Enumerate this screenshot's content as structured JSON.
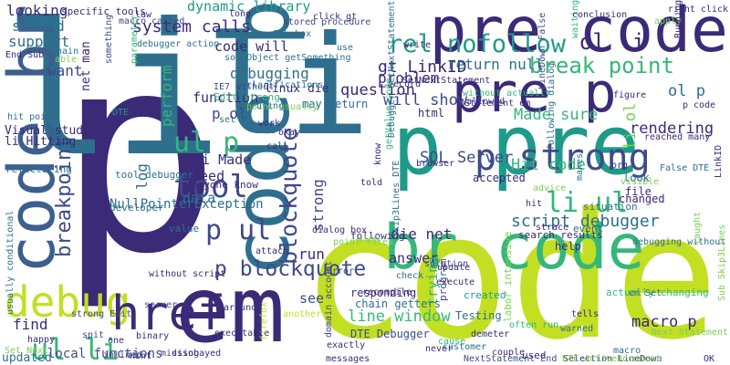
{
  "palette": {
    "navy": "#3b2a78",
    "indigo": "#3e4a8a",
    "blue": "#3b5f8f",
    "steel": "#2e6f8e",
    "teal": "#26828e",
    "sea": "#1f9a8a",
    "green": "#35b779",
    "lime": "#7ad151",
    "yellow": "#c2df23",
    "purple": "#46327e"
  },
  "words": [
    {
      "t": "p",
      "c": "navy"
    },
    {
      "t": "li",
      "c": "steel"
    },
    {
      "t": "li",
      "c": "steel"
    },
    {
      "t": "code",
      "c": "yellow"
    },
    {
      "t": "em",
      "c": "navy"
    },
    {
      "t": "pre code",
      "c": "navy"
    },
    {
      "t": "p pre",
      "c": "sea"
    },
    {
      "t": "br code",
      "c": "green"
    },
    {
      "t": "pre p",
      "c": "navy"
    },
    {
      "t": "code p",
      "c": "steel"
    },
    {
      "t": "code br",
      "c": "blue"
    },
    {
      "t": "debug",
      "c": "yellow"
    },
    {
      "t": "href",
      "c": "navy"
    },
    {
      "t": "p strong",
      "c": "indigo"
    },
    {
      "t": "rel nofollow",
      "c": "sea"
    },
    {
      "t": "ul li",
      "c": "green"
    },
    {
      "t": "p ul",
      "c": "indigo"
    },
    {
      "t": "li ul",
      "c": "green"
    },
    {
      "t": "tool",
      "c": "indigo"
    },
    {
      "t": "ul p",
      "c": "green"
    },
    {
      "t": "p blockquote",
      "c": "indigo"
    },
    {
      "t": "blockquote",
      "c": "indigo"
    },
    {
      "t": "breakpoint",
      "c": "indigo"
    },
    {
      "t": "system calls",
      "c": "navy"
    },
    {
      "t": "debugging",
      "c": "steel"
    },
    {
      "t": "gt LinkID",
      "c": "navy"
    },
    {
      "t": "break point",
      "c": "green"
    },
    {
      "t": "return null",
      "c": "steel"
    },
    {
      "t": "will show",
      "c": "indigo"
    },
    {
      "t": "ol li",
      "c": "navy"
    },
    {
      "t": "problem",
      "c": "navy"
    },
    {
      "t": "question",
      "c": "navy"
    },
    {
      "t": "SQL Server",
      "c": "indigo"
    },
    {
      "t": "script debugger",
      "c": "steel"
    },
    {
      "t": "Made sure",
      "c": "green"
    },
    {
      "t": "Hit code",
      "c": "green"
    },
    {
      "t": "rendering",
      "c": "navy"
    },
    {
      "t": "ol p",
      "c": "steel"
    },
    {
      "t": "li ol",
      "c": "lime"
    },
    {
      "t": "p ol",
      "c": "indigo"
    },
    {
      "t": "li Made",
      "c": "navy"
    },
    {
      "t": "need",
      "c": "navy"
    },
    {
      "t": "data",
      "c": "steel"
    },
    {
      "t": "log",
      "c": "steel"
    },
    {
      "t": "function",
      "c": "navy"
    },
    {
      "t": "perform",
      "c": "green"
    },
    {
      "t": "code will",
      "c": "navy"
    },
    {
      "t": "dynamic library",
      "c": "sea"
    },
    {
      "t": "looking",
      "c": "navy"
    },
    {
      "t": "support",
      "c": "steel"
    },
    {
      "t": "want",
      "c": "indigo"
    },
    {
      "t": "second",
      "c": "steel"
    },
    {
      "t": "net man",
      "c": "navy"
    },
    {
      "t": "find",
      "c": "navy"
    },
    {
      "t": "local functions",
      "c": "indigo"
    },
    {
      "t": "line window",
      "c": "green"
    },
    {
      "t": "macro p",
      "c": "navy"
    },
    {
      "t": "die net",
      "c": "navy"
    },
    {
      "t": "answer",
      "c": "navy"
    },
    {
      "t": "see",
      "c": "indigo"
    },
    {
      "t": "run",
      "c": "navy"
    },
    {
      "t": "strong",
      "c": "indigo"
    },
    {
      "t": "trying",
      "c": "green"
    },
    {
      "t": "NullPointerException",
      "c": "steel"
    },
    {
      "t": "Visual studio",
      "c": "navy"
    },
    {
      "t": "li Hitting",
      "c": "navy"
    },
    {
      "t": "linux die",
      "c": "navy"
    },
    {
      "t": "may return",
      "c": "steel"
    },
    {
      "t": "html",
      "c": "navy"
    },
    {
      "t": "updated",
      "c": "steel"
    },
    {
      "t": "Testing",
      "c": "steel"
    },
    {
      "t": "DTE Debugger",
      "c": "indigo"
    },
    {
      "t": "responding",
      "c": "navy"
    },
    {
      "t": "chain getters",
      "c": "steel"
    },
    {
      "t": "accepted",
      "c": "navy"
    },
    {
      "t": "file",
      "c": "navy"
    },
    {
      "t": "look",
      "c": "steel"
    },
    {
      "t": "changed",
      "c": "navy"
    },
    {
      "t": "help",
      "c": "navy"
    },
    {
      "t": "situation",
      "c": "steel"
    },
    {
      "t": "event",
      "c": "steel"
    },
    {
      "t": "search results",
      "c": "navy"
    },
    {
      "t": "value",
      "c": "steel"
    },
    {
      "t": "tool debugger",
      "c": "steel"
    },
    {
      "t": "dialog box",
      "c": "navy"
    },
    {
      "t": "anyone know",
      "c": "navy"
    },
    {
      "t": "developer",
      "c": "steel"
    },
    {
      "t": "refactoring",
      "c": "steel"
    },
    {
      "t": "without script",
      "c": "navy"
    },
    {
      "t": "around",
      "c": "navy"
    },
    {
      "t": "strong Edit",
      "c": "indigo"
    },
    {
      "t": "used",
      "c": "navy"
    },
    {
      "t": "often run",
      "c": "green"
    },
    {
      "t": "Set Next",
      "c": "lime"
    },
    {
      "t": "labor intensive",
      "c": "lime"
    },
    {
      "t": "created",
      "c": "sea"
    },
    {
      "t": "actually changing",
      "c": "green"
    },
    {
      "t": "debugging without",
      "c": "steel"
    },
    {
      "t": "reached many",
      "c": "navy"
    },
    {
      "t": "Next Statement",
      "c": "lime"
    },
    {
      "t": "point fires",
      "c": "lime"
    },
    {
      "t": "Error",
      "c": "indigo"
    },
    {
      "t": "program",
      "c": "indigo"
    },
    {
      "t": "following",
      "c": "navy"
    },
    {
      "t": "execute",
      "c": "navy"
    },
    {
      "t": "update",
      "c": "navy"
    },
    {
      "t": "server",
      "c": "indigo"
    },
    {
      "t": "Edit strong",
      "c": "green"
    },
    {
      "t": "IE7 without",
      "c": "indigo"
    },
    {
      "t": "point usually",
      "c": "lime"
    },
    {
      "t": "SQL box",
      "c": "steel"
    },
    {
      "t": "specific tools",
      "c": "navy"
    },
    {
      "t": "stored procedure",
      "c": "indigo"
    },
    {
      "t": "write",
      "c": "navy"
    },
    {
      "t": "record",
      "c": "navy"
    },
    {
      "t": "allowed",
      "c": "indigo"
    },
    {
      "t": "without actually",
      "c": "green"
    },
    {
      "t": "LineDown False",
      "c": "indigo"
    },
    {
      "t": "Statement em",
      "c": "navy"
    },
    {
      "t": "right click",
      "c": "navy"
    },
    {
      "t": "org",
      "c": "navy"
    },
    {
      "t": "False DTE",
      "c": "steel"
    },
    {
      "t": "Skip3Lines DTE",
      "c": "steel"
    },
    {
      "t": "Sub Skip3Lines",
      "c": "lime"
    },
    {
      "t": "usually conditional",
      "c": "steel"
    },
    {
      "t": "hit point",
      "c": "steel"
    },
    {
      "t": "em Set",
      "c": "steel"
    },
    {
      "t": "Selection LineDown",
      "c": "navy"
    },
    {
      "t": "DTE ActiveDocument",
      "c": "lime"
    },
    {
      "t": "NextStatement End",
      "c": "indigo"
    },
    {
      "t": "macro",
      "c": "steel"
    },
    {
      "t": "OK",
      "c": "navy"
    },
    {
      "t": "customer",
      "c": "steel"
    },
    {
      "t": "domain account",
      "c": "indigo"
    },
    {
      "t": "messages",
      "c": "navy"
    },
    {
      "t": "missing",
      "c": "indigo"
    },
    {
      "t": "executable",
      "c": "navy"
    },
    {
      "t": "disobayed",
      "c": "navy"
    },
    {
      "t": "inlined",
      "c": "indigo"
    },
    {
      "t": "happy",
      "c": "navy"
    },
    {
      "t": "work",
      "c": "navy"
    },
    {
      "t": "okay",
      "c": "navy"
    },
    {
      "t": "call",
      "c": "navy"
    },
    {
      "t": "using",
      "c": "steel"
    },
    {
      "t": "know",
      "c": "navy"
    },
    {
      "t": "told",
      "c": "navy"
    },
    {
      "t": "slow",
      "c": "lime"
    },
    {
      "t": "exactly",
      "c": "navy"
    },
    {
      "t": "never",
      "c": "navy"
    },
    {
      "t": "couple",
      "c": "navy"
    },
    {
      "t": "cause",
      "c": "green"
    },
    {
      "t": "spit",
      "c": "indigo"
    },
    {
      "t": "one",
      "c": "navy"
    },
    {
      "t": "binary",
      "c": "navy"
    },
    {
      "t": "Hint",
      "c": "navy"
    },
    {
      "t": "firefox",
      "c": "yellow"
    },
    {
      "t": "another",
      "c": "yellow"
    },
    {
      "t": "attach",
      "c": "navy"
    },
    {
      "t": "strace",
      "c": "navy"
    },
    {
      "t": "check",
      "c": "steel"
    },
    {
      "t": "solution",
      "c": "indigo"
    },
    {
      "t": "recompile",
      "c": "navy"
    },
    {
      "t": "demeter",
      "c": "navy"
    },
    {
      "t": "warned",
      "c": "steel"
    },
    {
      "t": "tells",
      "c": "navy"
    },
    {
      "t": "hit",
      "c": "navy"
    },
    {
      "t": "advice",
      "c": "lime"
    },
    {
      "t": "LinkID",
      "c": "navy"
    },
    {
      "t": "taught",
      "c": "lime"
    },
    {
      "t": "figure",
      "c": "navy"
    },
    {
      "t": "p code",
      "c": "navy"
    },
    {
      "t": "waiting",
      "c": "green"
    },
    {
      "t": "conclusion",
      "c": "navy"
    },
    {
      "t": "apply",
      "c": "lime"
    },
    {
      "t": "Running",
      "c": "navy"
    },
    {
      "t": "use",
      "c": "steel"
    },
    {
      "t": "click gt",
      "c": "navy"
    },
    {
      "t": "law",
      "c": "navy"
    },
    {
      "t": "macro called",
      "c": "indigo"
    },
    {
      "t": "long",
      "c": "navy"
    },
    {
      "t": "something",
      "c": "indigo"
    },
    {
      "t": "debugger action",
      "c": "steel"
    },
    {
      "t": "someObject getSomething",
      "c": "steel"
    },
    {
      "t": "clarifications",
      "c": "steel"
    },
    {
      "t": "set",
      "c": "steel"
    },
    {
      "t": "chain",
      "c": "steel"
    },
    {
      "t": "able",
      "c": "lime"
    },
    {
      "t": "End Sub",
      "c": "navy"
    },
    {
      "t": "parameter",
      "c": "green"
    },
    {
      "t": "SetNextStatement",
      "c": "navy"
    },
    {
      "t": "getValue code",
      "c": "green"
    },
    {
      "t": "makes",
      "c": "steel"
    },
    {
      "t": "Debugger SetNextStatement",
      "c": "steel"
    },
    {
      "t": "following dialog",
      "c": "steel"
    },
    {
      "t": "browser",
      "c": "navy"
    },
    {
      "t": "DTE",
      "c": "sea"
    },
    {
      "t": "visible",
      "c": "lime"
    }
  ]
}
